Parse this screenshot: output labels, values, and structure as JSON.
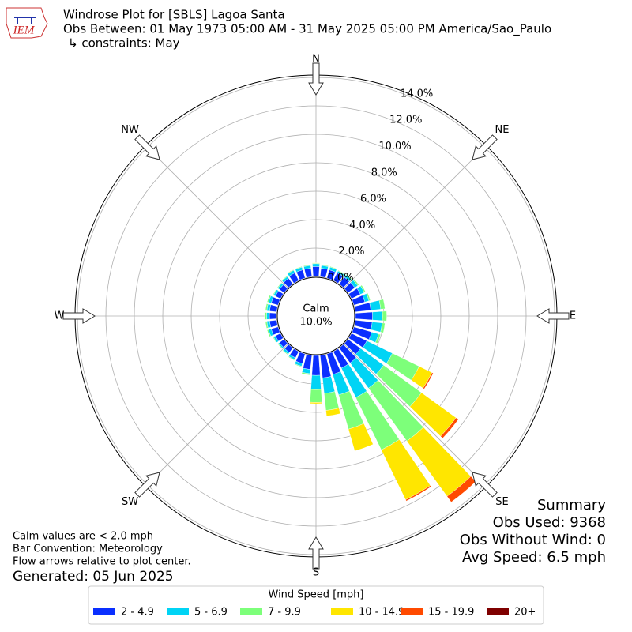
{
  "chart_data": {
    "type": "windrose",
    "logo_text": "IEM",
    "title": "Windrose Plot for [SBLS] Lagoa Santa",
    "subtitle": "Obs Between: 01 May 1973 05:00 AM - 31 May 2025 05:00 PM America/Sao_Paulo",
    "constraints": "↳ constraints: May",
    "directions": [
      "N",
      "NE",
      "E",
      "SE",
      "S",
      "SW",
      "W",
      "NW"
    ],
    "categories": [
      0,
      10,
      20,
      30,
      40,
      50,
      60,
      70,
      80,
      90,
      100,
      110,
      120,
      130,
      140,
      150,
      160,
      170,
      180,
      190,
      200,
      210,
      220,
      230,
      240,
      250,
      260,
      270,
      280,
      290,
      300,
      310,
      320,
      330,
      340,
      350
    ],
    "ylim": [
      0,
      14
    ],
    "yticks": [
      {
        "value": 0,
        "label": "0.0%"
      },
      {
        "value": 2,
        "label": "2.0%"
      },
      {
        "value": 4,
        "label": "4.0%"
      },
      {
        "value": 6,
        "label": "6.0%"
      },
      {
        "value": 8,
        "label": "8.0%"
      },
      {
        "value": 10,
        "label": "10.0%"
      },
      {
        "value": 12,
        "label": "12.0%"
      },
      {
        "value": 14,
        "label": "14.0%"
      }
    ],
    "grid": true,
    "calm_label": "Calm",
    "calm_value": 10.0,
    "calm_value_label": "10.0%",
    "legend_title": "Wind Speed [mph]",
    "series": [
      {
        "name": "2 - 4.9",
        "color": "#0a2fff",
        "values": [
          0.7,
          0.6,
          0.6,
          0.6,
          0.6,
          0.6,
          0.7,
          0.8,
          1.1,
          1.2,
          1.2,
          1.3,
          1.2,
          1.1,
          1.3,
          1.3,
          1.5,
          1.6,
          1.4,
          1.0,
          0.7,
          0.5,
          0.4,
          0.4,
          0.4,
          0.5,
          0.5,
          0.5,
          0.5,
          0.5,
          0.4,
          0.4,
          0.5,
          0.6,
          0.6,
          0.6
        ]
      },
      {
        "name": "5 - 6.9",
        "color": "#00d4f5",
        "values": [
          0.2,
          0.2,
          0.2,
          0.15,
          0.2,
          0.25,
          0.3,
          0.3,
          0.7,
          0.7,
          0.7,
          0.5,
          2.0,
          2.0,
          2.2,
          2.3,
          1.5,
          1.1,
          1.0,
          0.3,
          0.2,
          0.15,
          0.15,
          0.1,
          0.15,
          0.2,
          0.2,
          0.2,
          0.2,
          0.2,
          0.15,
          0.15,
          0.15,
          0.2,
          0.2,
          0.2
        ]
      },
      {
        "name": "7 - 9.9",
        "color": "#7dff7a",
        "values": [
          0.05,
          0.05,
          0.05,
          0.05,
          0.05,
          0.1,
          0.1,
          0.1,
          0.3,
          0.3,
          0.2,
          0.15,
          2.1,
          3.3,
          4.6,
          4.1,
          2.5,
          1.2,
          0.9,
          0.1,
          0.05,
          0.05,
          0.05,
          0.05,
          0.05,
          0.1,
          0.1,
          0.15,
          0.1,
          0.1,
          0.05,
          0.05,
          0.05,
          0.05,
          0.05,
          0.05
        ]
      },
      {
        "name": "10 - 14.9",
        "color": "#ffe600",
        "values": [
          0.02,
          0,
          0,
          0,
          0,
          0,
          0,
          0,
          0,
          0,
          0,
          0,
          1.0,
          3.0,
          4.8,
          3.9,
          1.6,
          0.4,
          0.1,
          0,
          0,
          0,
          0,
          0,
          0,
          0,
          0,
          0,
          0,
          0,
          0,
          0,
          0,
          0,
          0,
          0
        ]
      },
      {
        "name": "15 - 19.9",
        "color": "#ff4a00",
        "values": [
          0,
          0,
          0,
          0,
          0,
          0,
          0,
          0,
          0,
          0,
          0,
          0,
          0.1,
          0.2,
          0.5,
          0.1,
          0,
          0,
          0.02,
          0,
          0,
          0,
          0,
          0,
          0,
          0,
          0,
          0,
          0,
          0,
          0,
          0,
          0,
          0,
          0,
          0
        ]
      },
      {
        "name": "20+",
        "color": "#7f0000",
        "values": [
          0,
          0,
          0,
          0,
          0,
          0,
          0,
          0,
          0,
          0,
          0,
          0,
          0,
          0,
          0,
          0,
          0,
          0,
          0,
          0,
          0,
          0,
          0,
          0,
          0,
          0,
          0,
          0,
          0,
          0,
          0,
          0,
          0,
          0,
          0,
          0
        ]
      }
    ],
    "summary": [
      "Summary",
      "Obs Used: 9368",
      "Obs Without Wind: 0",
      "Avg Speed: 6.5 mph"
    ],
    "notes": [
      "Calm values are < 2.0 mph",
      "Bar Convention: Meteorology",
      "Flow arrows relative to plot center."
    ],
    "generated": "Generated: 05 Jun 2025"
  }
}
